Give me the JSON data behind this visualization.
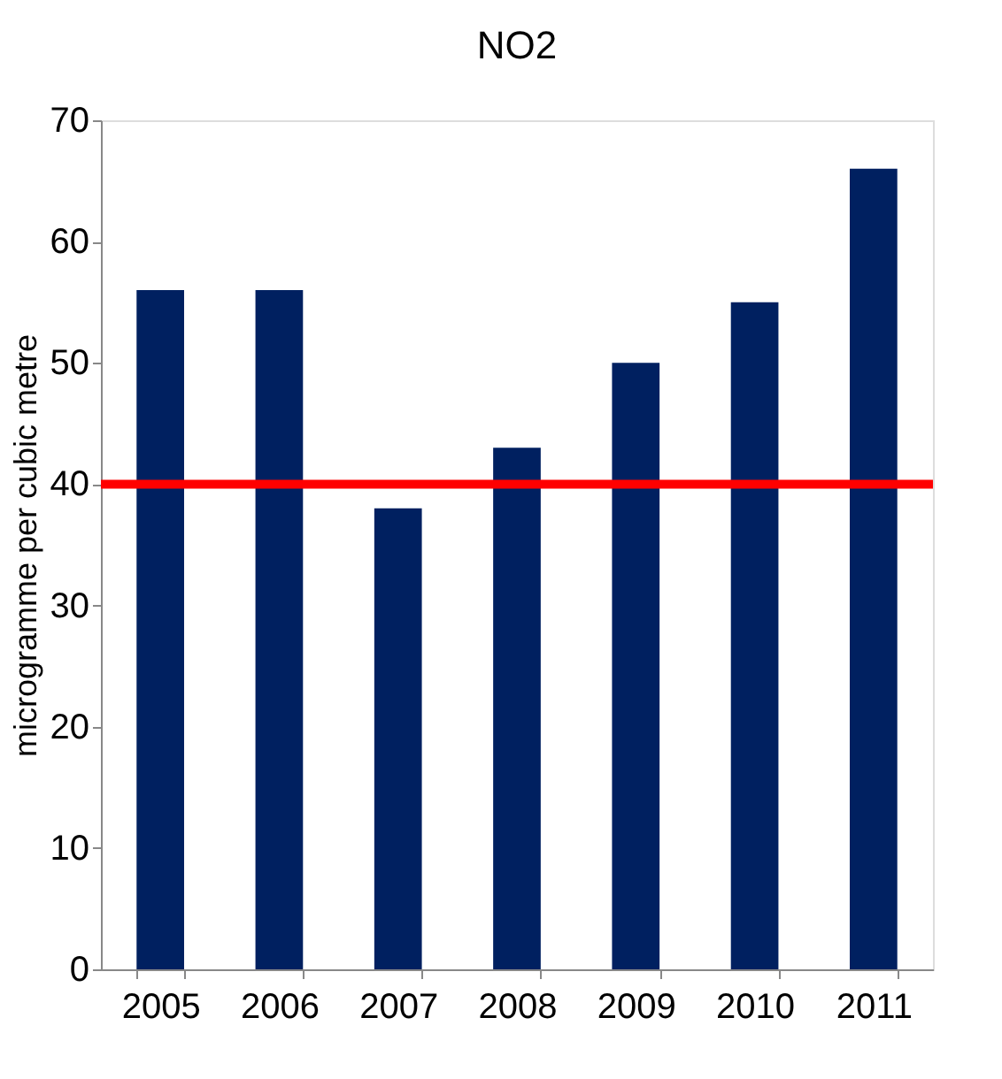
{
  "chart_data": {
    "type": "bar",
    "title": "NO2",
    "ylabel": "microgramme per cubic metre",
    "categories": [
      "2005",
      "2006",
      "2007",
      "2008",
      "2009",
      "2010",
      "2011"
    ],
    "values": [
      56,
      56,
      38,
      43,
      50,
      55,
      66
    ],
    "color": "#002060",
    "ylim": [
      0,
      70
    ],
    "yticks": [
      0,
      10,
      20,
      30,
      40,
      50,
      60,
      70
    ],
    "grid": false,
    "ref_lines": [
      {
        "axis": "y",
        "value": 40,
        "color": "#ff0000"
      }
    ]
  }
}
